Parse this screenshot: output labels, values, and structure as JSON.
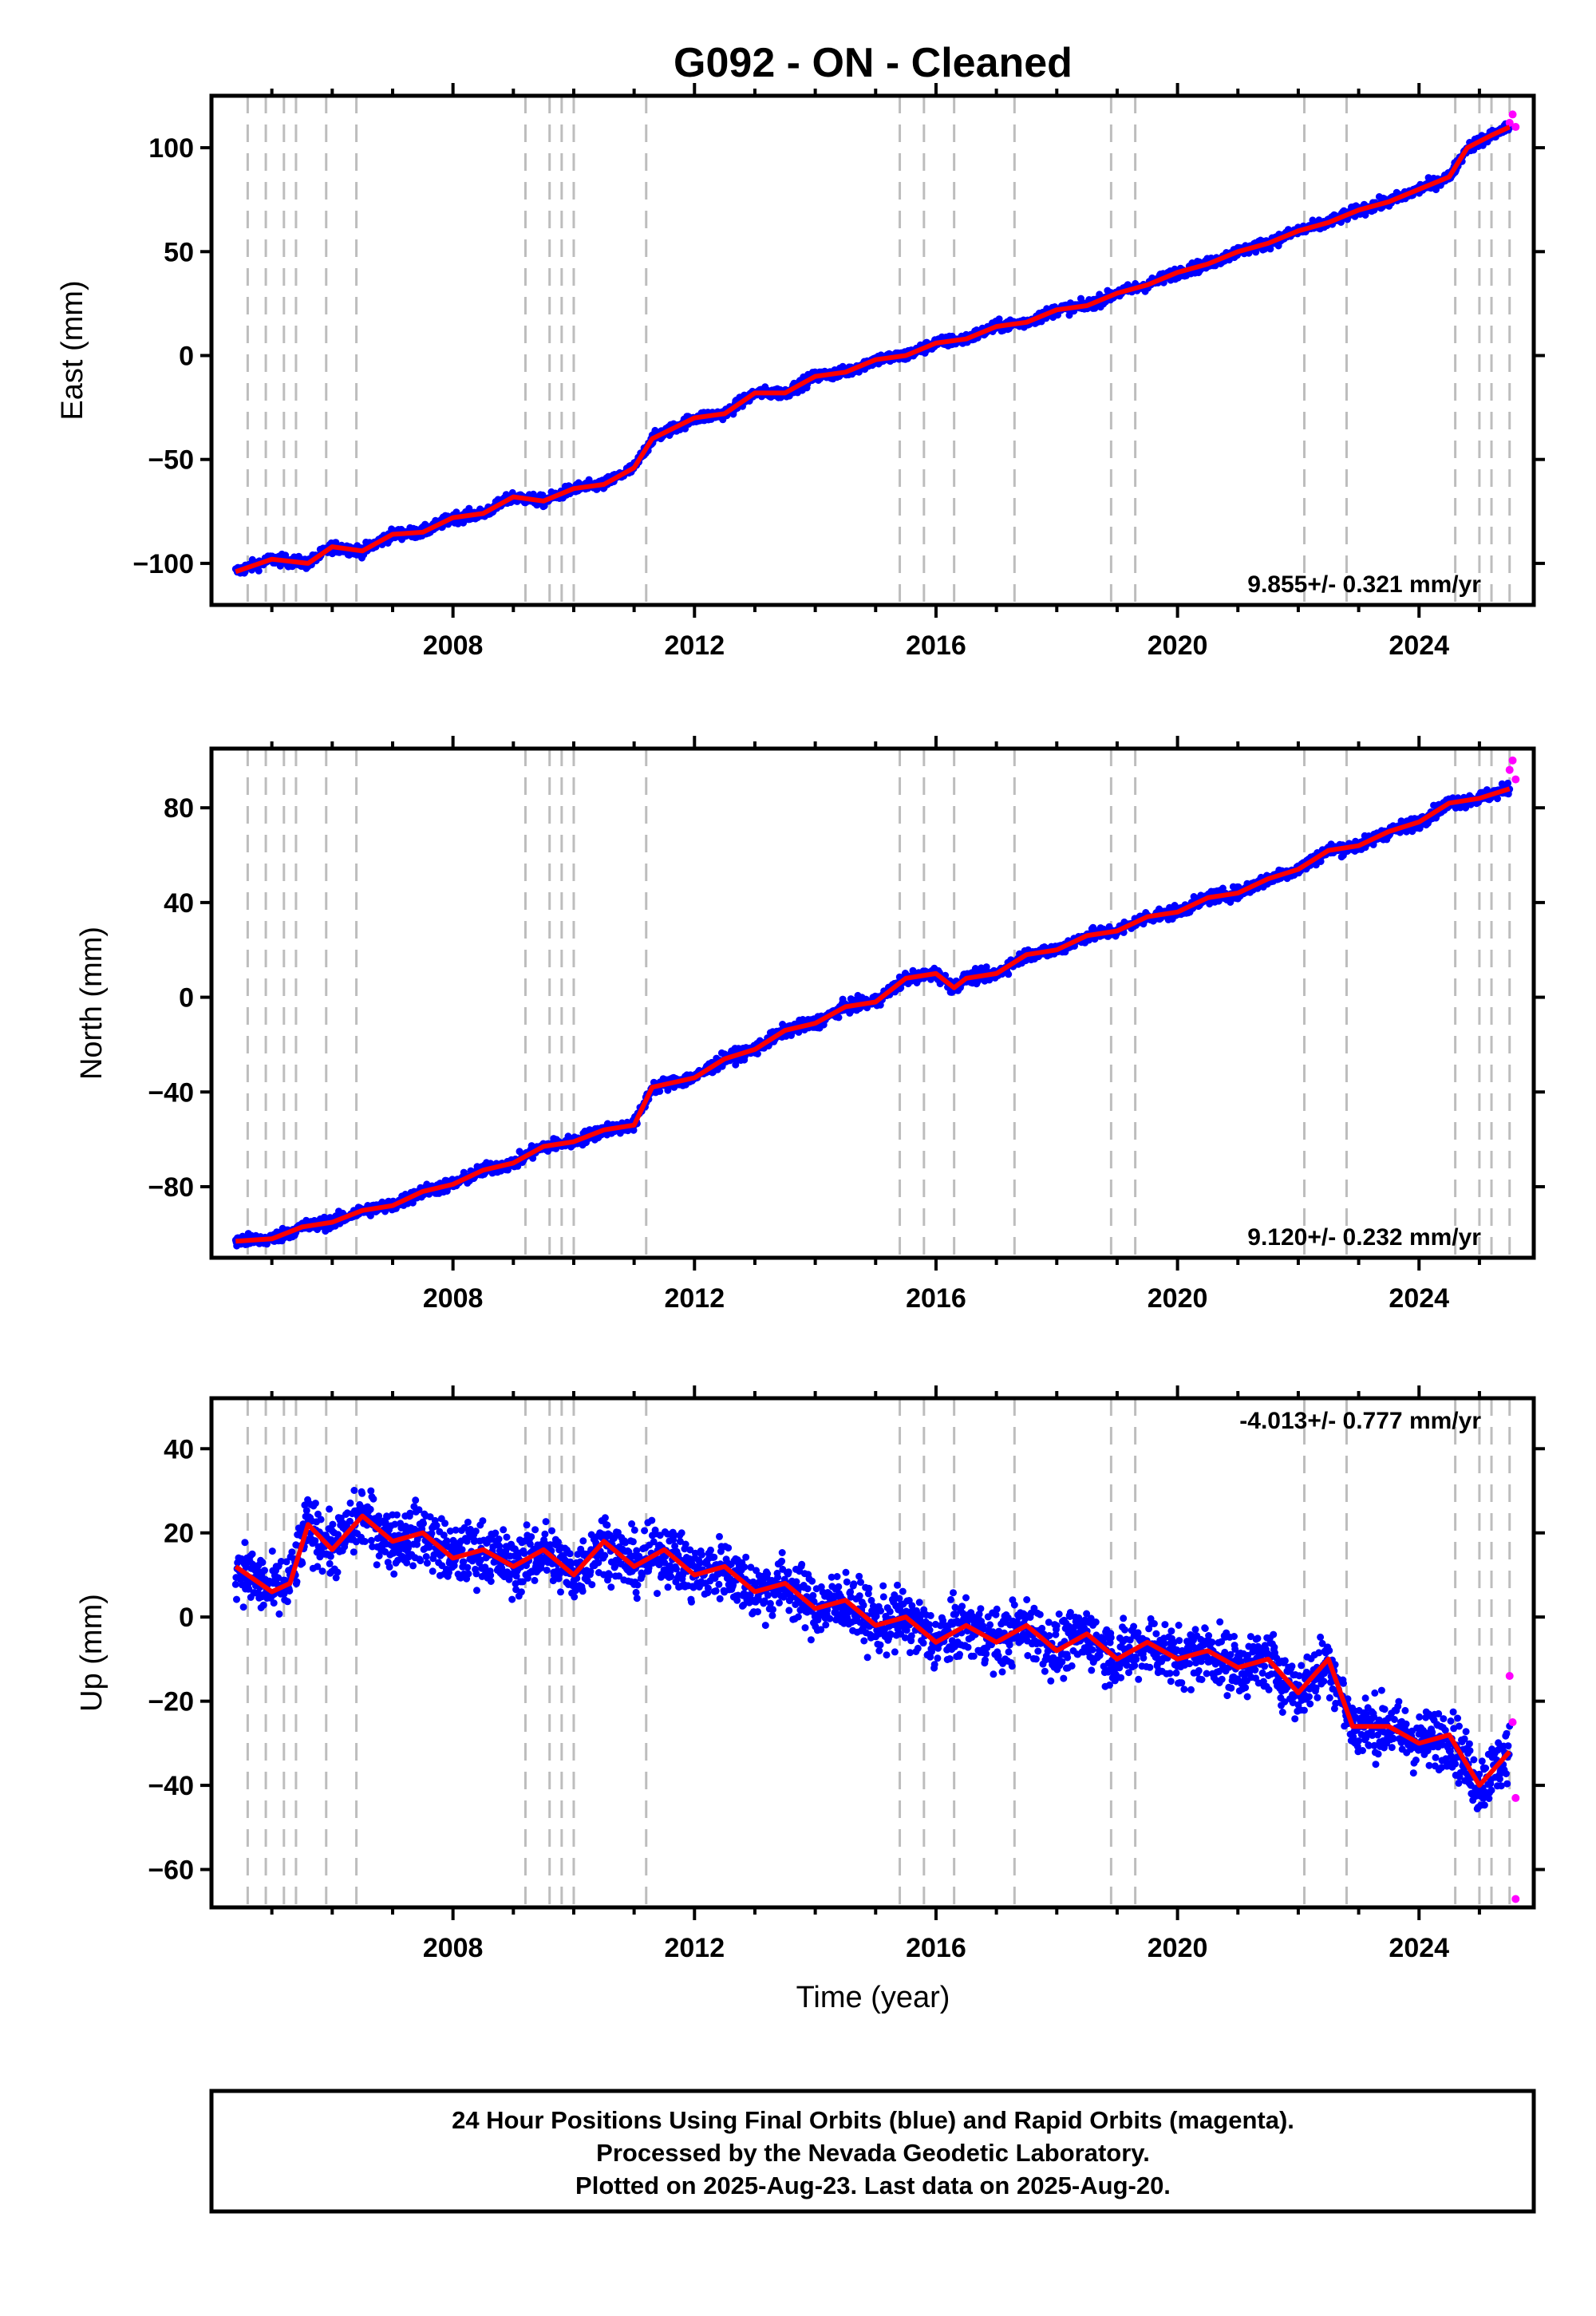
{
  "title": "G092  - ON - Cleaned",
  "xlabel": "Time (year)",
  "xticks": [
    2008,
    2012,
    2016,
    2020,
    2024
  ],
  "xlim": [
    2004.0,
    2025.9
  ],
  "event_lines": [
    2004.6,
    2004.9,
    2005.2,
    2005.4,
    2005.9,
    2006.4,
    2009.2,
    2009.6,
    2009.8,
    2010.0,
    2011.2,
    2015.4,
    2015.8,
    2016.3,
    2017.3,
    2018.9,
    2019.3,
    2022.1,
    2022.8,
    2024.6,
    2025.0,
    2025.2,
    2025.5
  ],
  "colors": {
    "final_orbits": "#0000ff",
    "rapid_orbits": "#ff00ff",
    "model": "#ff0000",
    "event_line": "#bdbdbd"
  },
  "chart_data": [
    {
      "type": "scatter",
      "panel": "east",
      "ylabel": "East (mm)",
      "ylim": [
        -120,
        125
      ],
      "yticks": [
        -100,
        -50,
        0,
        50,
        100
      ],
      "rate": "9.855+/- 0.321 mm/yr",
      "series": [
        {
          "role": "final",
          "x": [
            2004.4,
            2005.0,
            2005.6,
            2006.0,
            2006.5,
            2007.0,
            2007.5,
            2008.0,
            2008.5,
            2009.0,
            2009.5,
            2010.0,
            2010.5,
            2011.0,
            2011.3,
            2012.0,
            2012.5,
            2013.0,
            2013.5,
            2014.0,
            2014.5,
            2015.0,
            2015.5,
            2016.0,
            2016.5,
            2017.0,
            2017.5,
            2018.0,
            2018.5,
            2019.0,
            2019.5,
            2020.0,
            2020.5,
            2021.0,
            2021.5,
            2022.0,
            2022.5,
            2023.0,
            2023.5,
            2024.0,
            2024.5,
            2024.8,
            2025.2,
            2025.5
          ],
          "y": [
            -104,
            -98,
            -100,
            -92,
            -94,
            -86,
            -85,
            -78,
            -76,
            -68,
            -70,
            -64,
            -62,
            -54,
            -40,
            -30,
            -28,
            -18,
            -18,
            -10,
            -8,
            -2,
            0,
            6,
            8,
            14,
            16,
            22,
            24,
            30,
            34,
            40,
            44,
            50,
            54,
            60,
            64,
            70,
            74,
            80,
            86,
            100,
            106,
            110
          ]
        },
        {
          "role": "rapid",
          "x": [
            2025.5,
            2025.55,
            2025.6
          ],
          "y": [
            112,
            116,
            110
          ]
        }
      ]
    },
    {
      "type": "scatter",
      "panel": "north",
      "ylabel": "North (mm)",
      "ylim": [
        -110,
        105
      ],
      "yticks": [
        -80,
        -40,
        0,
        40,
        80
      ],
      "rate": "9.120+/- 0.232 mm/yr",
      "series": [
        {
          "role": "final",
          "x": [
            2004.4,
            2005.0,
            2005.5,
            2006.0,
            2006.5,
            2007.0,
            2007.5,
            2008.0,
            2008.5,
            2009.0,
            2009.5,
            2010.0,
            2010.5,
            2011.0,
            2011.3,
            2012.0,
            2012.5,
            2013.0,
            2013.5,
            2014.0,
            2014.5,
            2015.0,
            2015.5,
            2016.0,
            2016.3,
            2016.5,
            2017.0,
            2017.5,
            2018.0,
            2018.5,
            2019.0,
            2019.5,
            2020.0,
            2020.5,
            2021.0,
            2021.5,
            2022.0,
            2022.5,
            2023.0,
            2023.5,
            2024.0,
            2024.5,
            2025.0,
            2025.5
          ],
          "y": [
            -103,
            -102,
            -97,
            -95,
            -90,
            -88,
            -82,
            -79,
            -73,
            -70,
            -63,
            -61,
            -56,
            -54,
            -38,
            -34,
            -26,
            -22,
            -14,
            -11,
            -4,
            -2,
            8,
            10,
            4,
            8,
            10,
            18,
            20,
            26,
            28,
            34,
            36,
            42,
            44,
            50,
            54,
            62,
            64,
            70,
            74,
            82,
            84,
            88
          ]
        },
        {
          "role": "rapid",
          "x": [
            2025.5,
            2025.55,
            2025.6
          ],
          "y": [
            96,
            100,
            92
          ]
        }
      ]
    },
    {
      "type": "scatter",
      "panel": "up",
      "ylabel": "Up (mm)",
      "ylim": [
        -69,
        52
      ],
      "yticks": [
        -60,
        -40,
        -20,
        0,
        20,
        40
      ],
      "rate": "-4.013+/- 0.777 mm/yr",
      "series": [
        {
          "role": "final",
          "x": [
            2004.4,
            2005.0,
            2005.3,
            2005.6,
            2006.0,
            2006.5,
            2007.0,
            2007.5,
            2008.0,
            2008.5,
            2009.0,
            2009.5,
            2010.0,
            2010.5,
            2011.0,
            2011.5,
            2012.0,
            2012.5,
            2013.0,
            2013.5,
            2014.0,
            2014.5,
            2015.0,
            2015.5,
            2016.0,
            2016.5,
            2017.0,
            2017.5,
            2018.0,
            2018.5,
            2019.0,
            2019.5,
            2020.0,
            2020.5,
            2021.0,
            2021.5,
            2022.0,
            2022.5,
            2022.9,
            2023.5,
            2024.0,
            2024.5,
            2025.0,
            2025.5
          ],
          "y": [
            12,
            6,
            8,
            22,
            16,
            24,
            18,
            20,
            14,
            16,
            12,
            16,
            10,
            18,
            12,
            16,
            10,
            12,
            6,
            8,
            2,
            4,
            -2,
            0,
            -6,
            -2,
            -6,
            -2,
            -8,
            -4,
            -10,
            -6,
            -10,
            -8,
            -12,
            -10,
            -18,
            -10,
            -26,
            -26,
            -30,
            -28,
            -40,
            -32
          ]
        },
        {
          "role": "rapid",
          "x": [
            2025.5,
            2025.55,
            2025.6,
            2025.6
          ],
          "y": [
            -14,
            -25,
            -43,
            -67
          ]
        }
      ]
    }
  ],
  "footer": {
    "line1": "24 Hour Positions Using Final Orbits (blue) and Rapid Orbits (magenta).",
    "line2": "Processed by the Nevada Geodetic Laboratory.",
    "line3": "Plotted on 2025-Aug-23. Last data on 2025-Aug-20."
  }
}
